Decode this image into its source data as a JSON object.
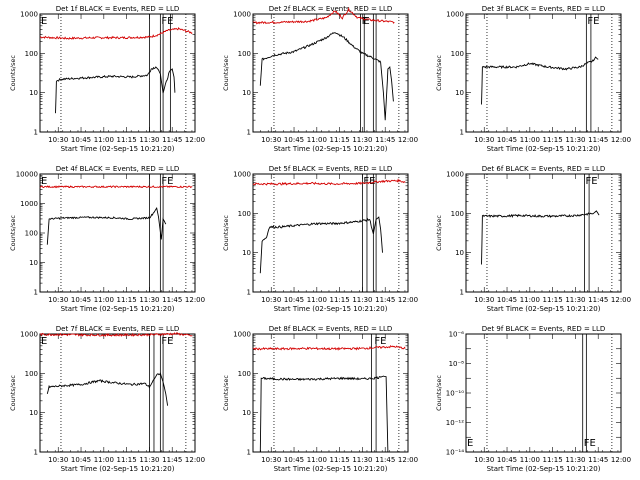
{
  "colors": {
    "events": "#000000",
    "lld": "#d40000",
    "axes": "#000000",
    "background": "#ffffff"
  },
  "time_ticks": [
    "10:30",
    "10:45",
    "11:00",
    "11:15",
    "11:30",
    "11:45",
    "12:00"
  ],
  "x_label": "Start Time (02-Sep-15 10:21:20)",
  "y_label": "Counts/sec",
  "chart_data": [
    {
      "type": "line",
      "title": "Det 1f BLACK = Events, RED = LLD",
      "ylim": [
        1,
        1000
      ],
      "log_y": true,
      "y_ticks": [
        {
          "v": 1,
          "label": "1"
        },
        {
          "v": 10,
          "label": "10"
        },
        {
          "v": 100,
          "label": "100"
        },
        {
          "v": 1000,
          "label": "1000"
        }
      ],
      "markers": [
        {
          "x": 10.3,
          "label": "E"
        },
        {
          "x": 11.62,
          "label": "FE"
        }
      ],
      "vlines": [
        10.53,
        11.5,
        11.62,
        11.65,
        11.73
      ],
      "series": [
        {
          "color_key": "lld",
          "points": [
            [
              10.3,
              260
            ],
            [
              10.6,
              240
            ],
            [
              10.9,
              250
            ],
            [
              11.2,
              250
            ],
            [
              11.5,
              260
            ],
            [
              11.6,
              300
            ],
            [
              11.7,
              380
            ],
            [
              11.82,
              420
            ],
            [
              11.9,
              370
            ],
            [
              11.97,
              330
            ]
          ]
        },
        {
          "color_key": "events",
          "points": [
            [
              10.47,
              3
            ],
            [
              10.48,
              20
            ],
            [
              10.53,
              22
            ],
            [
              10.8,
              24
            ],
            [
              11.1,
              26
            ],
            [
              11.3,
              25
            ],
            [
              11.48,
              28
            ],
            [
              11.52,
              40
            ],
            [
              11.57,
              45
            ],
            [
              11.6,
              38
            ],
            [
              11.62,
              30
            ],
            [
              11.65,
              10
            ],
            [
              11.72,
              35
            ],
            [
              11.75,
              40
            ],
            [
              11.77,
              25
            ],
            [
              11.78,
              10
            ]
          ]
        }
      ]
    },
    {
      "type": "line",
      "title": "Det 2f BLACK = Events, RED = LLD",
      "ylim": [
        1,
        1000
      ],
      "log_y": true,
      "y_ticks": [
        {
          "v": 1,
          "label": "1"
        },
        {
          "v": 10,
          "label": "10"
        },
        {
          "v": 100,
          "label": "100"
        },
        {
          "v": 1000,
          "label": "1000"
        }
      ],
      "markers": [
        {
          "x": 11.48,
          "label": "F"
        },
        {
          "x": 11.5,
          "label": "E"
        }
      ],
      "vlines": [
        10.53,
        11.48,
        11.52,
        11.62,
        11.65
      ],
      "series": [
        {
          "color_key": "lld",
          "points": [
            [
              10.3,
              600
            ],
            [
              10.6,
              620
            ],
            [
              10.9,
              650
            ],
            [
              11.1,
              800
            ],
            [
              11.2,
              1200
            ],
            [
              11.28,
              800
            ],
            [
              11.35,
              1300
            ],
            [
              11.45,
              800
            ],
            [
              11.6,
              700
            ],
            [
              11.85,
              620
            ]
          ]
        },
        {
          "color_key": "events",
          "points": [
            [
              10.38,
              15
            ],
            [
              10.4,
              70
            ],
            [
              10.53,
              90
            ],
            [
              10.75,
              110
            ],
            [
              10.95,
              170
            ],
            [
              11.1,
              250
            ],
            [
              11.2,
              350
            ],
            [
              11.3,
              250
            ],
            [
              11.4,
              150
            ],
            [
              11.5,
              100
            ],
            [
              11.6,
              80
            ],
            [
              11.7,
              60
            ],
            [
              11.73,
              10
            ],
            [
              11.75,
              2
            ],
            [
              11.78,
              40
            ],
            [
              11.8,
              45
            ],
            [
              11.82,
              20
            ],
            [
              11.84,
              6
            ]
          ]
        }
      ]
    },
    {
      "type": "line",
      "title": "Det 3f BLACK = Events, RED = LLD",
      "ylim": [
        1,
        1000
      ],
      "log_y": true,
      "y_ticks": [
        {
          "v": 1,
          "label": "1"
        },
        {
          "v": 10,
          "label": "10"
        },
        {
          "v": 100,
          "label": "100"
        },
        {
          "v": 1000,
          "label": "1000"
        }
      ],
      "markers": [
        {
          "x": 11.62,
          "label": "FE"
        }
      ],
      "vlines": [
        10.53,
        11.62,
        11.67
      ],
      "series": [
        {
          "color_key": "events",
          "points": [
            [
              10.47,
              5
            ],
            [
              10.48,
              45
            ],
            [
              10.6,
              45
            ],
            [
              10.85,
              45
            ],
            [
              11.0,
              55
            ],
            [
              11.2,
              45
            ],
            [
              11.4,
              40
            ],
            [
              11.55,
              45
            ],
            [
              11.62,
              55
            ],
            [
              11.7,
              65
            ],
            [
              11.72,
              80
            ],
            [
              11.75,
              70
            ]
          ]
        }
      ]
    },
    {
      "type": "line",
      "title": "Det 4f BLACK = Events, RED = LLD",
      "ylim": [
        1,
        10000
      ],
      "log_y": true,
      "y_ticks": [
        {
          "v": 1,
          "label": "1"
        },
        {
          "v": 10,
          "label": "10"
        },
        {
          "v": 100,
          "label": "100"
        },
        {
          "v": 1000,
          "label": "1000"
        },
        {
          "v": 10000,
          "label": "10000"
        }
      ],
      "markers": [
        {
          "x": 10.3,
          "label": "E"
        },
        {
          "x": 11.62,
          "label": "FE"
        }
      ],
      "vlines": [
        10.53,
        11.5,
        11.62,
        11.65
      ],
      "series": [
        {
          "color_key": "lld",
          "points": [
            [
              10.3,
              3700
            ],
            [
              10.8,
              3700
            ],
            [
              11.2,
              3700
            ],
            [
              11.6,
              3700
            ],
            [
              11.97,
              3700
            ]
          ]
        },
        {
          "color_key": "events",
          "points": [
            [
              10.38,
              40
            ],
            [
              10.4,
              300
            ],
            [
              10.53,
              320
            ],
            [
              10.8,
              340
            ],
            [
              11.1,
              330
            ],
            [
              11.3,
              300
            ],
            [
              11.5,
              330
            ],
            [
              11.55,
              500
            ],
            [
              11.58,
              700
            ],
            [
              11.6,
              350
            ],
            [
              11.63,
              60
            ],
            [
              11.65,
              300
            ],
            [
              11.68,
              200
            ]
          ]
        }
      ]
    },
    {
      "type": "line",
      "title": "Det 5f BLACK = Events, RED = LLD",
      "ylim": [
        1,
        1000
      ],
      "log_y": true,
      "y_ticks": [
        {
          "v": 1,
          "label": "1"
        },
        {
          "v": 10,
          "label": "10"
        },
        {
          "v": 100,
          "label": "100"
        },
        {
          "v": 1000,
          "label": "1000"
        }
      ],
      "markers": [
        {
          "x": 11.5,
          "label": "FE"
        }
      ],
      "vlines": [
        10.53,
        11.5,
        11.55,
        11.62,
        11.65
      ],
      "series": [
        {
          "color_key": "lld",
          "points": [
            [
              10.3,
              560
            ],
            [
              10.6,
              560
            ],
            [
              10.9,
              580
            ],
            [
              11.2,
              560
            ],
            [
              11.5,
              580
            ],
            [
              11.7,
              650
            ],
            [
              11.9,
              680
            ],
            [
              11.97,
              620
            ]
          ]
        },
        {
          "color_key": "events",
          "points": [
            [
              10.38,
              3
            ],
            [
              10.4,
              20
            ],
            [
              10.45,
              25
            ],
            [
              10.48,
              45
            ],
            [
              10.6,
              45
            ],
            [
              10.8,
              50
            ],
            [
              11.0,
              55
            ],
            [
              11.2,
              55
            ],
            [
              11.4,
              60
            ],
            [
              11.5,
              65
            ],
            [
              11.58,
              70
            ],
            [
              11.62,
              30
            ],
            [
              11.65,
              70
            ],
            [
              11.68,
              80
            ],
            [
              11.7,
              40
            ],
            [
              11.72,
              10
            ]
          ]
        }
      ]
    },
    {
      "type": "line",
      "title": "Det 6f BLACK = Events, RED = LLD",
      "ylim": [
        1,
        1000
      ],
      "log_y": true,
      "y_ticks": [
        {
          "v": 1,
          "label": "1"
        },
        {
          "v": 10,
          "label": "10"
        },
        {
          "v": 100,
          "label": "100"
        },
        {
          "v": 1000,
          "label": "1000"
        }
      ],
      "markers": [
        {
          "x": 11.6,
          "label": "FE"
        }
      ],
      "vlines": [
        10.53,
        11.6,
        11.65
      ],
      "series": [
        {
          "color_key": "events",
          "points": [
            [
              10.47,
              5
            ],
            [
              10.48,
              85
            ],
            [
              10.7,
              85
            ],
            [
              10.9,
              88
            ],
            [
              11.1,
              85
            ],
            [
              11.3,
              85
            ],
            [
              11.5,
              88
            ],
            [
              11.62,
              95
            ],
            [
              11.7,
              100
            ],
            [
              11.73,
              115
            ],
            [
              11.76,
              90
            ]
          ]
        }
      ]
    },
    {
      "type": "line",
      "title": "Det 7f BLACK = Events, RED = LLD",
      "ylim": [
        1,
        1000
      ],
      "log_y": true,
      "y_ticks": [
        {
          "v": 1,
          "label": "1"
        },
        {
          "v": 10,
          "label": "10"
        },
        {
          "v": 100,
          "label": "100"
        },
        {
          "v": 1000,
          "label": "1000"
        }
      ],
      "markers": [
        {
          "x": 10.3,
          "label": "E"
        },
        {
          "x": 11.62,
          "label": "FE"
        }
      ],
      "vlines": [
        10.53,
        11.5,
        11.55,
        11.62,
        11.65
      ],
      "series": [
        {
          "color_key": "lld",
          "points": [
            [
              10.3,
              980
            ],
            [
              10.8,
              950
            ],
            [
              11.1,
              940
            ],
            [
              11.5,
              960
            ],
            [
              11.8,
              1020
            ],
            [
              11.97,
              900
            ]
          ]
        },
        {
          "color_key": "events",
          "points": [
            [
              10.38,
              30
            ],
            [
              10.4,
              45
            ],
            [
              10.53,
              48
            ],
            [
              10.75,
              52
            ],
            [
              10.95,
              65
            ],
            [
              11.1,
              58
            ],
            [
              11.3,
              52
            ],
            [
              11.45,
              55
            ],
            [
              11.5,
              45
            ],
            [
              11.55,
              70
            ],
            [
              11.58,
              90
            ],
            [
              11.62,
              100
            ],
            [
              11.65,
              60
            ],
            [
              11.68,
              30
            ],
            [
              11.7,
              15
            ]
          ]
        }
      ]
    },
    {
      "type": "line",
      "title": "Det 8f BLACK = Events, RED = LLD",
      "ylim": [
        1,
        1000
      ],
      "log_y": true,
      "y_ticks": [
        {
          "v": 1,
          "label": "1"
        },
        {
          "v": 10,
          "label": "10"
        },
        {
          "v": 100,
          "label": "100"
        },
        {
          "v": 1000,
          "label": "1000"
        }
      ],
      "markers": [
        {
          "x": 11.62,
          "label": "FE"
        }
      ],
      "vlines": [
        10.53,
        11.6,
        11.65
      ],
      "series": [
        {
          "color_key": "lld",
          "points": [
            [
              10.3,
              420
            ],
            [
              10.6,
              420
            ],
            [
              10.9,
              430
            ],
            [
              11.2,
              420
            ],
            [
              11.5,
              430
            ],
            [
              11.7,
              460
            ],
            [
              11.85,
              480
            ],
            [
              11.97,
              430
            ]
          ]
        },
        {
          "color_key": "events",
          "points": [
            [
              10.38,
              1
            ],
            [
              10.39,
              75
            ],
            [
              10.53,
              72
            ],
            [
              10.8,
              70
            ],
            [
              11.05,
              72
            ],
            [
              11.3,
              75
            ],
            [
              11.5,
              72
            ],
            [
              11.62,
              75
            ],
            [
              11.7,
              80
            ],
            [
              11.73,
              85
            ],
            [
              11.76,
              82
            ],
            [
              11.78,
              1
            ]
          ]
        }
      ]
    },
    {
      "type": "line",
      "title": "Det 9f BLACK = Events, RED = LLD",
      "ylim": [
        1e-14,
        1e-06
      ],
      "log_y": true,
      "y_ticks": [
        {
          "v": 1e-06,
          "label": "10⁻⁶"
        },
        {
          "v": 1e-08,
          "label": "10⁻⁸"
        },
        {
          "v": 1e-10,
          "label": "10⁻¹⁰"
        },
        {
          "v": 1e-12,
          "label": "10⁻¹²"
        },
        {
          "v": 1e-14,
          "label": "10⁻¹⁴"
        }
      ],
      "markers": [
        {
          "x": 10.3,
          "label": "E"
        },
        {
          "x": 11.58,
          "label": "FE"
        }
      ],
      "vlines": [
        10.53,
        11.58,
        11.62
      ],
      "series": []
    }
  ]
}
